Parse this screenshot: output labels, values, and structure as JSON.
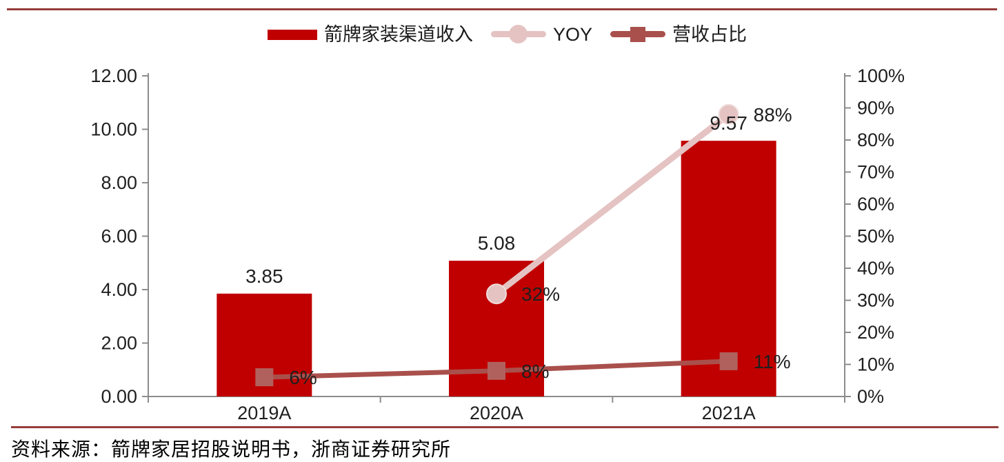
{
  "page": {
    "source_note": "资料来源：箭牌家居招股说明书，浙商证券研究所",
    "rule_color": "#963D3B",
    "background": "#ffffff"
  },
  "legend": [
    {
      "label": "箭牌家装渠道收入",
      "marker": "bar",
      "color": "#C00000"
    },
    {
      "label": "YOY",
      "marker": "circle",
      "color": "#E4C3C2"
    },
    {
      "label": "营收占比",
      "marker": "square",
      "color": "#A9504C"
    }
  ],
  "chart_data": {
    "type": "bar+line combo",
    "categories": [
      "2019A",
      "2020A",
      "2021A"
    ],
    "series": [
      {
        "name": "箭牌家装渠道收入",
        "type": "bar",
        "axis": "left",
        "color": "#C00000",
        "values": [
          3.85,
          5.08,
          9.57
        ],
        "labels": [
          "3.85",
          "5.08",
          "9.57"
        ]
      },
      {
        "name": "YOY",
        "type": "line",
        "axis": "right",
        "color": "#E4C3C2",
        "marker": "circle",
        "marker_fill": "#E4C3C2",
        "line_width": 9,
        "marker_size": 28,
        "values": [
          null,
          32,
          88
        ],
        "labels": [
          null,
          "32%",
          "88%"
        ]
      },
      {
        "name": "营收占比",
        "type": "line",
        "axis": "right",
        "color": "#A9504C",
        "marker": "square",
        "marker_fill": "#B0615D",
        "line_width": 7,
        "marker_size": 26,
        "values": [
          6,
          8,
          11
        ],
        "labels": [
          "6%",
          "8%",
          "11%"
        ]
      }
    ],
    "left_axis": {
      "min": 0,
      "max": 12,
      "ticks": [
        "0.00",
        "2.00",
        "4.00",
        "6.00",
        "8.00",
        "10.00",
        "12.00"
      ]
    },
    "right_axis": {
      "min": 0,
      "max": 100,
      "ticks": [
        "0%",
        "10%",
        "20%",
        "30%",
        "40%",
        "50%",
        "60%",
        "70%",
        "80%",
        "90%",
        "100%"
      ]
    },
    "axis_color": "#8C8C8C",
    "label_color": "#1f1f1f",
    "grid": false,
    "legend_position": "top"
  }
}
